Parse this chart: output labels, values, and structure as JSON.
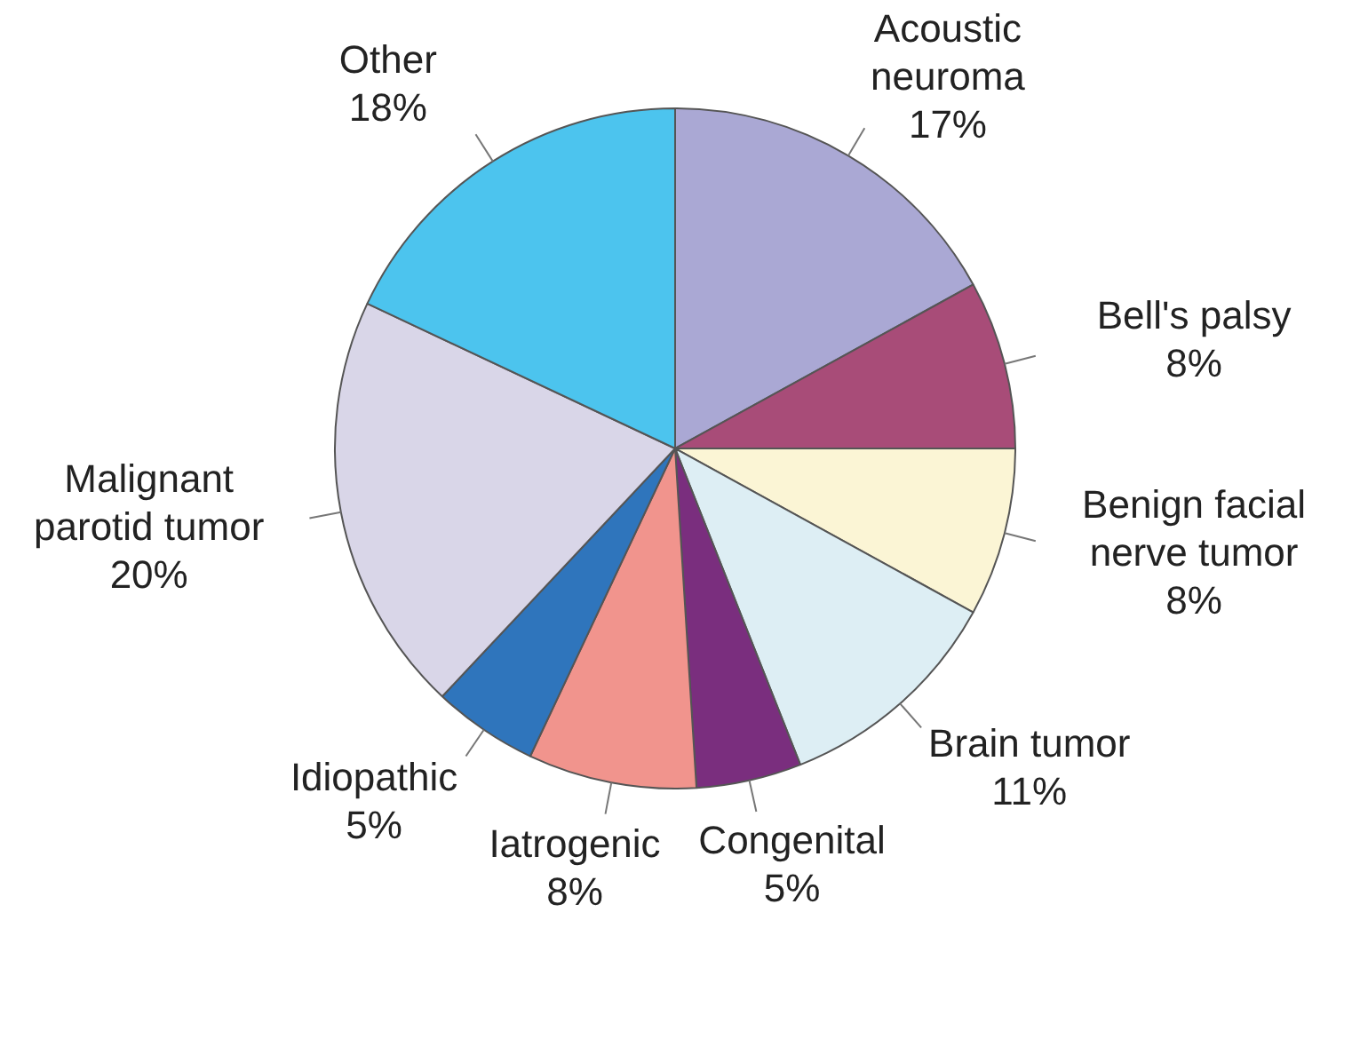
{
  "chart_data": {
    "type": "pie",
    "categories": [
      "Acoustic neuroma",
      "Bell's palsy",
      "Benign facial nerve tumor",
      "Brain tumor",
      "Congenital",
      "Iatrogenic",
      "Idiopathic",
      "Malignant parotid tumor",
      "Other"
    ],
    "values": [
      17,
      8,
      8,
      11,
      5,
      8,
      5,
      20,
      18
    ],
    "value_labels": [
      "17%",
      "8%",
      "8%",
      "11%",
      "5%",
      "8%",
      "5%",
      "20%",
      "18%"
    ],
    "colors": [
      "#aaa8d4",
      "#a84c78",
      "#fbf5d5",
      "#ddeef4",
      "#7a2e7e",
      "#f1948d",
      "#2f75bc",
      "#d9d6e8",
      "#4cc4ee"
    ],
    "legend": false
  }
}
